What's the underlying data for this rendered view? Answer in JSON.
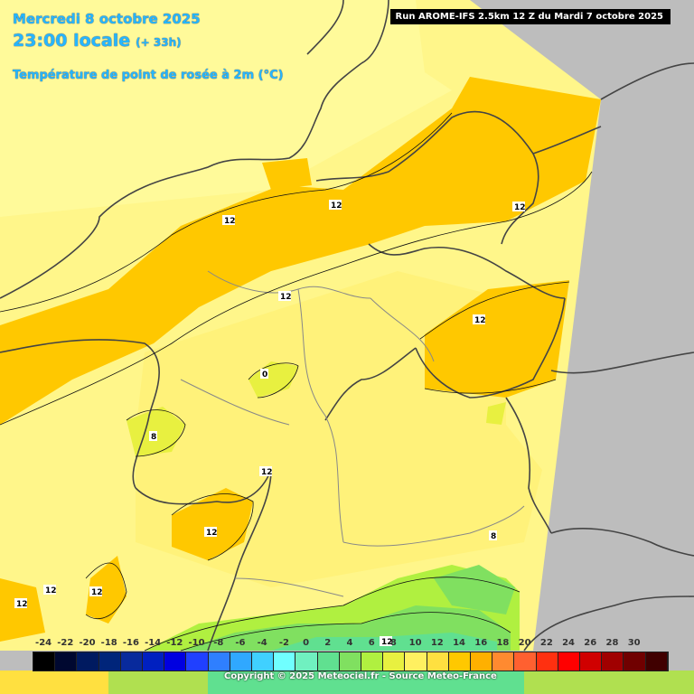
{
  "header": {
    "date": "Mercredi 8 octobre 2025",
    "time": "23:00 locale",
    "lead": "(+ 33h)",
    "parameter": "Température de point de rosée à 2m (°C)"
  },
  "run_info": "Run AROME-IFS 2.5km 12 Z du Mardi 7 octobre 2025",
  "legend": {
    "labels": [
      "-24",
      "-22",
      "-20",
      "-18",
      "-16",
      "-14",
      "-12",
      "-10",
      "-8",
      "-6",
      "-4",
      "-2",
      "0",
      "2",
      "4",
      "6",
      "8",
      "10",
      "12",
      "14",
      "16",
      "18",
      "20",
      "22",
      "24",
      "26",
      "28",
      "30"
    ],
    "colors": [
      "#000000",
      "#000830",
      "#001a60",
      "#00257a",
      "#082a9c",
      "#0020c0",
      "#0000e0",
      "#2040ff",
      "#2f7fff",
      "#30a8ff",
      "#40d0ff",
      "#70ffff",
      "#70f0c0",
      "#60e090",
      "#80e060",
      "#b0f040",
      "#e8f040",
      "#fff060",
      "#ffe040",
      "#ffc800",
      "#ffb000",
      "#ff8a30",
      "#ff6030",
      "#ff3010",
      "#ff0000",
      "#d00000",
      "#a00000",
      "#700000",
      "#400000"
    ]
  },
  "contour_labels": [
    "12",
    "12",
    "12",
    "12",
    "12",
    "12",
    "0",
    "8",
    "12",
    "12",
    "12",
    "12",
    "12",
    "8"
  ],
  "copyright": "Copyright © 2025 Meteociel.fr - Source Meteo-France"
}
